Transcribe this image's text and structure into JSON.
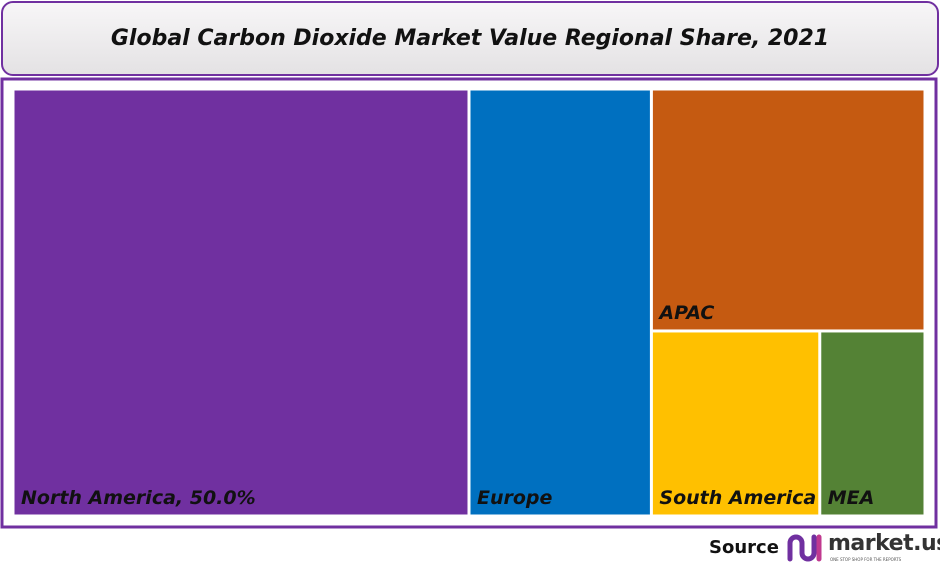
{
  "chart_data": {
    "type": "treemap",
    "title": "Global Carbon Dioxide Market Value Regional Share, 2021",
    "categories": [
      "North America, 50.0%",
      "Europe",
      "APAC",
      "South America",
      "MEA"
    ],
    "values": [
      50,
      20,
      17,
      8,
      5
    ],
    "colors": [
      "#7030a0",
      "#0070c0",
      "#c55a11",
      "#ffc000",
      "#548235"
    ]
  },
  "footer": {
    "source": "Source",
    "logo": "market.us",
    "tagline": "ONE STOP SHOP FOR THE REPORTS"
  }
}
